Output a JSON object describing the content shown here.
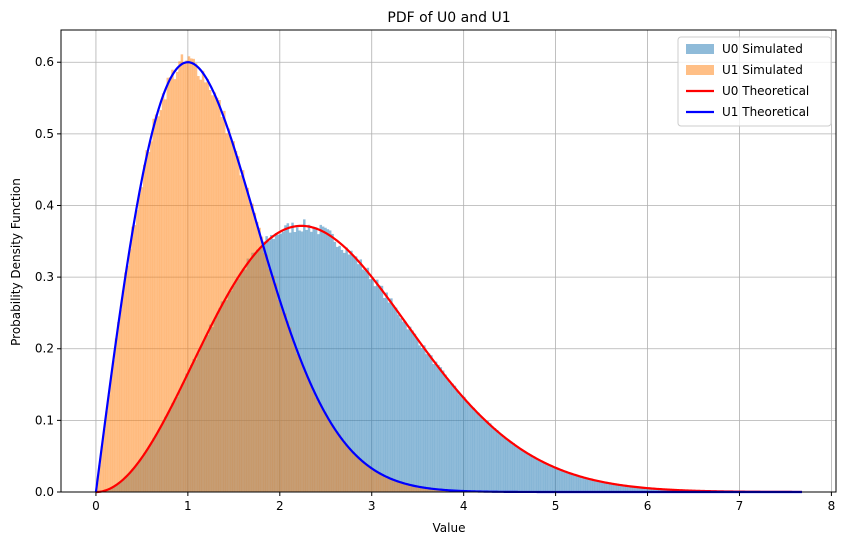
{
  "chart_data": {
    "type": "area",
    "title": "PDF of U0 and U1",
    "xlabel": "Value",
    "ylabel": "Probability Density Function",
    "xlim": [
      -0.38,
      8.05
    ],
    "ylim": [
      0,
      0.645
    ],
    "xticks": [
      0,
      1,
      2,
      3,
      4,
      5,
      6,
      7,
      8
    ],
    "yticks": [
      0.0,
      0.1,
      0.2,
      0.3,
      0.4,
      0.5,
      0.6
    ],
    "ytick_labels": [
      "0.0",
      "0.1",
      "0.2",
      "0.3",
      "0.4",
      "0.5",
      "0.6"
    ],
    "grid": true,
    "legend_position": "top-right",
    "x_max": 7.68,
    "series": [
      {
        "name": "U0 Simulated",
        "kind": "histogram",
        "color": "#1f77b4",
        "alpha": 0.5,
        "pdf": "x^2*exp(-x^2/2)*sqrt(2/pi)/2",
        "scale": 2.0,
        "peak": 0.423
      },
      {
        "name": "U1 Simulated",
        "kind": "histogram",
        "color": "#ff7f0e",
        "alpha": 0.5,
        "pdf": "x*exp(-x^2/2)",
        "peak": 0.6
      },
      {
        "name": "U0 Theoretical",
        "kind": "line",
        "color": "#ff0000"
      },
      {
        "name": "U1 Theoretical",
        "kind": "line",
        "color": "#0000ff"
      }
    ]
  }
}
